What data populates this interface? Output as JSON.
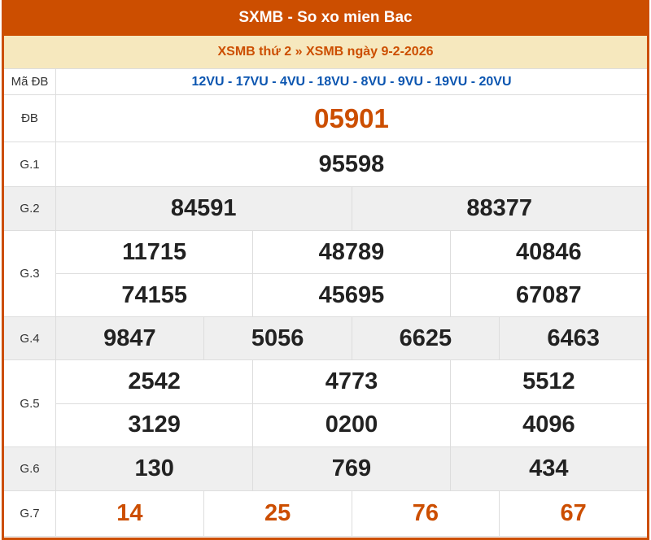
{
  "header": {
    "title": "SXMB - So xo mien Bac",
    "subtitle": "XSMB thứ 2 » XSMB ngày 9-2-2026"
  },
  "colors": {
    "brand": "#cc4e00",
    "subtitle_bg": "#f6e8be",
    "code": "#0b55b0"
  },
  "ma_db": {
    "label": "Mã ĐB",
    "value": "12VU - 17VU - 4VU - 18VU - 8VU - 9VU - 19VU - 20VU"
  },
  "prizes": [
    {
      "label": "ĐB",
      "rows": [
        [
          "05901"
        ]
      ]
    },
    {
      "label": "G.1",
      "rows": [
        [
          "95598"
        ]
      ]
    },
    {
      "label": "G.2",
      "rows": [
        [
          "84591",
          "88377"
        ]
      ]
    },
    {
      "label": "G.3",
      "rows": [
        [
          "11715",
          "48789",
          "40846"
        ],
        [
          "74155",
          "45695",
          "67087"
        ]
      ]
    },
    {
      "label": "G.4",
      "rows": [
        [
          "9847",
          "5056",
          "6625",
          "6463"
        ]
      ]
    },
    {
      "label": "G.5",
      "rows": [
        [
          "2542",
          "4773",
          "5512"
        ],
        [
          "3129",
          "0200",
          "4096"
        ]
      ]
    },
    {
      "label": "G.6",
      "rows": [
        [
          "130",
          "769",
          "434"
        ]
      ]
    },
    {
      "label": "G.7",
      "rows": [
        [
          "14",
          "25",
          "76",
          "67"
        ]
      ]
    }
  ]
}
